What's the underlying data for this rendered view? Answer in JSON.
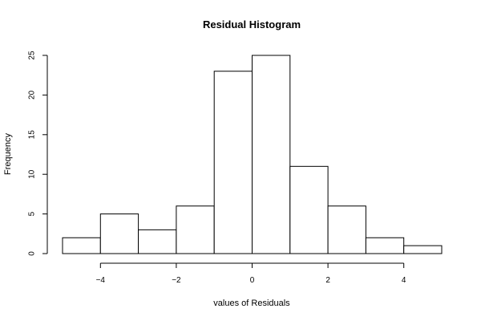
{
  "chart_data": {
    "type": "bar",
    "title": "Residual Histogram",
    "xlabel": "values of Residuals",
    "ylabel": "Frequency",
    "bins": [
      {
        "start": -5,
        "end": -4,
        "count": 2
      },
      {
        "start": -4,
        "end": -3,
        "count": 5
      },
      {
        "start": -3,
        "end": -2,
        "count": 3
      },
      {
        "start": -2,
        "end": -1,
        "count": 6
      },
      {
        "start": -1,
        "end": 0,
        "count": 23
      },
      {
        "start": 0,
        "end": 1,
        "count": 25
      },
      {
        "start": 1,
        "end": 2,
        "count": 11
      },
      {
        "start": 2,
        "end": 3,
        "count": 6
      },
      {
        "start": 3,
        "end": 4,
        "count": 2
      },
      {
        "start": 4,
        "end": 5,
        "count": 1
      }
    ],
    "x_ticks": [
      -4,
      -2,
      0,
      2,
      4
    ],
    "x_tick_labels": [
      "−4",
      "−2",
      "0",
      "2",
      "4"
    ],
    "y_ticks": [
      0,
      5,
      10,
      15,
      20,
      25
    ],
    "y_tick_labels": [
      "0",
      "5",
      "10",
      "15",
      "20",
      "25"
    ],
    "xlim": [
      -5,
      5
    ],
    "ylim": [
      0,
      25
    ],
    "grid": false
  }
}
